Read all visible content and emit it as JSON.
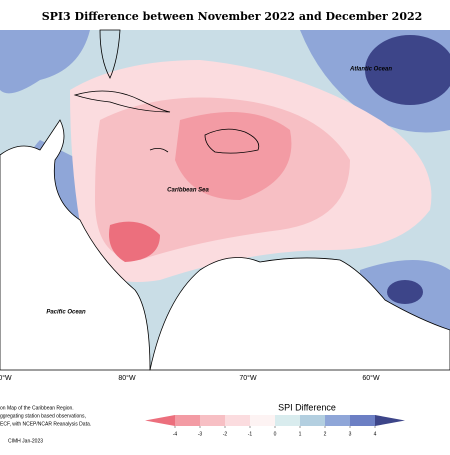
{
  "title": "SPI3 Difference between November 2022 and December 2022",
  "map": {
    "labels": [
      "Atlantic Ocean",
      "Caribbean Sea",
      "Pacific Ocean"
    ],
    "longitudes": [
      "0°W",
      "80°W",
      "70°W",
      "60°W"
    ]
  },
  "footnote": [
    "on Map of the Caribbean Region.",
    "ggregating station based observations,",
    "ECF, with NCEP/NCAR Reanalysis Data."
  ],
  "credit": "CIMH Jan-2023",
  "legend": {
    "title": "SPI Difference",
    "ticks": [
      -4,
      -3,
      -2,
      -1,
      0,
      1,
      2,
      3,
      4
    ],
    "colors": [
      "#ec6f7d",
      "#f39ba4",
      "#f7bfc4",
      "#fbdcdf",
      "#fdf3f3",
      "#d9ecee",
      "#b3cfe0",
      "#8fa6d8",
      "#6c7fc4",
      "#3d4589"
    ]
  }
}
